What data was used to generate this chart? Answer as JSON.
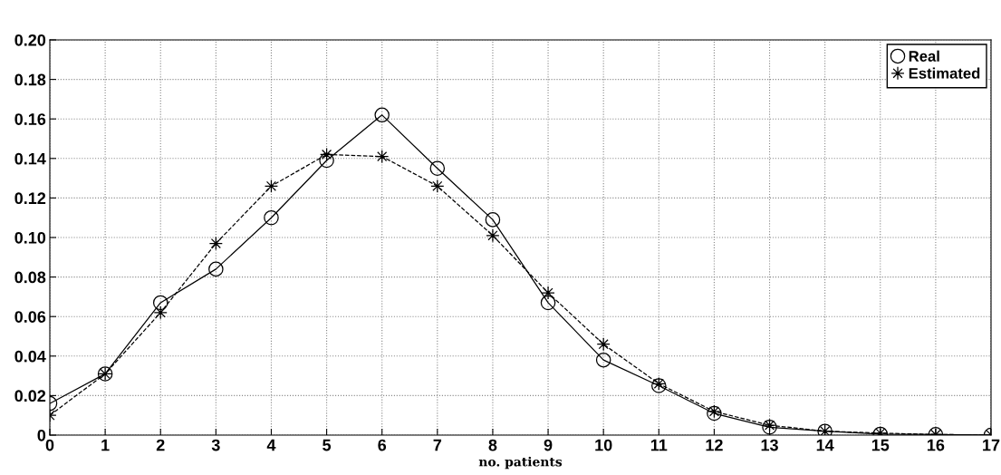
{
  "chart_data": {
    "type": "line",
    "xlabel": "no. patients",
    "x": [
      0,
      1,
      2,
      3,
      4,
      5,
      6,
      7,
      8,
      9,
      10,
      11,
      12,
      13,
      14,
      15,
      16,
      17
    ],
    "series": [
      {
        "name": "Real",
        "color": "#000000",
        "marker": "circle",
        "line_style": "solid",
        "values": [
          0.016,
          0.031,
          0.067,
          0.084,
          0.11,
          0.139,
          0.162,
          0.135,
          0.109,
          0.067,
          0.038,
          0.025,
          0.011,
          0.004,
          0.002,
          0.0005,
          0.0003,
          0.0
        ]
      },
      {
        "name": "Estimated",
        "color": "#000000",
        "marker": "star",
        "line_style": "dashed",
        "values": [
          0.01,
          0.031,
          0.062,
          0.097,
          0.126,
          0.142,
          0.141,
          0.126,
          0.101,
          0.072,
          0.046,
          0.026,
          0.012,
          0.005,
          0.002,
          0.001,
          0.0003,
          0.0001
        ]
      }
    ],
    "xlim": [
      0,
      17
    ],
    "xticks": [
      0,
      1,
      2,
      3,
      4,
      5,
      6,
      7,
      8,
      9,
      10,
      11,
      12,
      13,
      14,
      15,
      16,
      17
    ],
    "ylim": [
      0,
      0.2
    ],
    "yticks": [
      {
        "value": 0,
        "label": "0"
      },
      {
        "value": 0.02,
        "label": "0.02"
      },
      {
        "value": 0.04,
        "label": "0.04"
      },
      {
        "value": 0.06,
        "label": "0.06"
      },
      {
        "value": 0.08,
        "label": "0.08"
      },
      {
        "value": 0.1,
        "label": "0.10"
      },
      {
        "value": 0.12,
        "label": "0.12"
      },
      {
        "value": 0.14,
        "label": "0.14"
      },
      {
        "value": 0.16,
        "label": "0.16"
      },
      {
        "value": 0.18,
        "label": "0.18"
      },
      {
        "value": 0.2,
        "label": "0.20"
      }
    ],
    "grid": true,
    "legend": "top right"
  }
}
